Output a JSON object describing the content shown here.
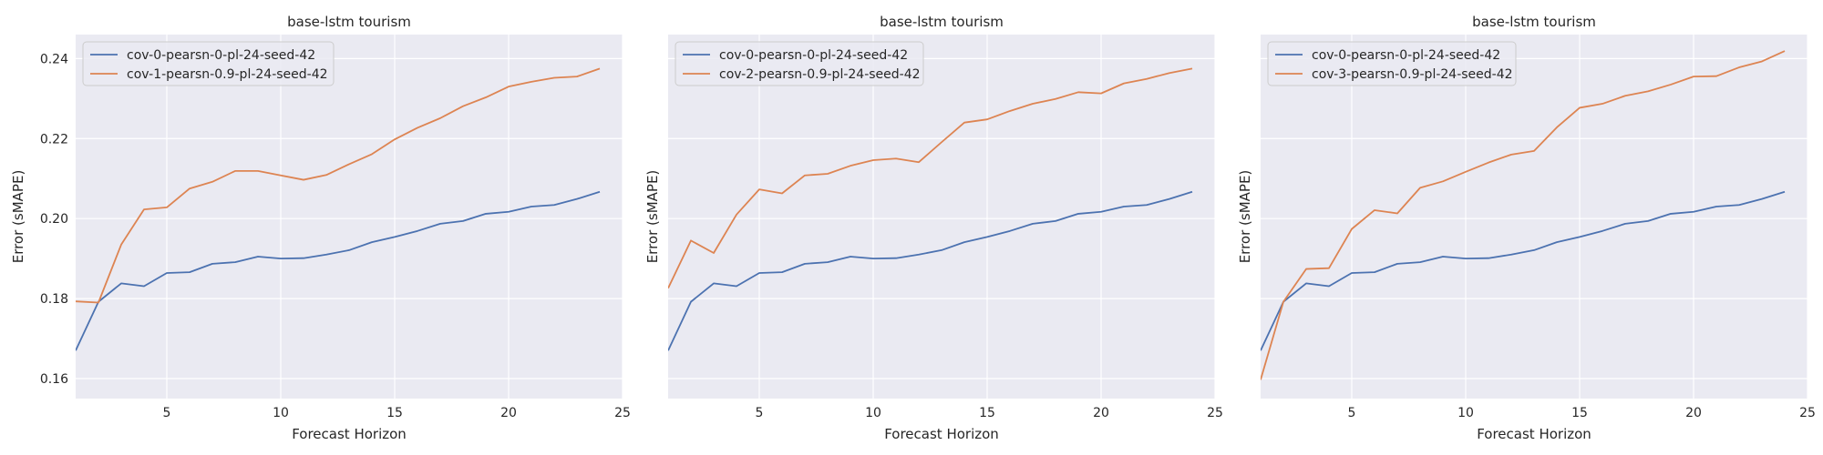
{
  "chart_data": [
    {
      "type": "line",
      "title": "base-lstm tourism",
      "xlabel": "Forecast Horizon",
      "ylabel": "Error (sMAPE)",
      "xlim": [
        1,
        25
      ],
      "ylim": [
        0.155,
        0.246
      ],
      "xticks": [
        5,
        10,
        15,
        20,
        25
      ],
      "yticks": [
        0.16,
        0.18,
        0.2,
        0.22,
        0.24
      ],
      "ytick_labels": [
        "0.16",
        "0.18",
        "0.20",
        "0.22",
        "0.24"
      ],
      "show_ytick_labels": true,
      "grid": true,
      "legend_position": "top-left",
      "x": [
        1,
        2,
        3,
        4,
        5,
        6,
        7,
        8,
        9,
        10,
        11,
        12,
        13,
        14,
        15,
        16,
        17,
        18,
        19,
        20,
        21,
        22,
        23,
        24
      ],
      "series": [
        {
          "name": "cov-0-pearsn-0-pl-24-seed-42",
          "color": "#4c72b0",
          "values": [
            0.167,
            0.1792,
            0.1838,
            0.1831,
            0.1864,
            0.1866,
            0.1887,
            0.1891,
            0.1905,
            0.19,
            0.1901,
            0.191,
            0.1921,
            0.1941,
            0.1954,
            0.1969,
            0.1987,
            0.1994,
            0.2012,
            0.2017,
            0.203,
            0.2034,
            0.2049,
            0.2067
          ]
        },
        {
          "name": "cov-1-pearsn-0.9-pl-24-seed-42",
          "color": "#dd8452",
          "values": [
            0.1793,
            0.179,
            0.1935,
            0.2023,
            0.2028,
            0.2075,
            0.2092,
            0.2119,
            0.2119,
            0.2108,
            0.2097,
            0.2109,
            0.2136,
            0.2161,
            0.2198,
            0.2227,
            0.2251,
            0.2281,
            0.2303,
            0.233,
            0.2342,
            0.2352,
            0.2355,
            0.2375
          ]
        }
      ]
    },
    {
      "type": "line",
      "title": "base-lstm tourism",
      "xlabel": "Forecast Horizon",
      "ylabel": "Error (sMAPE)",
      "xlim": [
        1,
        25
      ],
      "ylim": [
        0.155,
        0.246
      ],
      "xticks": [
        5,
        10,
        15,
        20,
        25
      ],
      "yticks": [
        0.16,
        0.18,
        0.2,
        0.22,
        0.24
      ],
      "ytick_labels": [
        "0.16",
        "0.18",
        "0.20",
        "0.22",
        "0.24"
      ],
      "show_ytick_labels": false,
      "grid": true,
      "legend_position": "top-left",
      "x": [
        1,
        2,
        3,
        4,
        5,
        6,
        7,
        8,
        9,
        10,
        11,
        12,
        13,
        14,
        15,
        16,
        17,
        18,
        19,
        20,
        21,
        22,
        23,
        24
      ],
      "series": [
        {
          "name": "cov-0-pearsn-0-pl-24-seed-42",
          "color": "#4c72b0",
          "values": [
            0.167,
            0.1792,
            0.1838,
            0.1831,
            0.1864,
            0.1866,
            0.1887,
            0.1891,
            0.1905,
            0.19,
            0.1901,
            0.191,
            0.1921,
            0.1941,
            0.1954,
            0.1969,
            0.1987,
            0.1994,
            0.2012,
            0.2017,
            0.203,
            0.2034,
            0.2049,
            0.2067
          ]
        },
        {
          "name": "cov-2-pearsn-0.9-pl-24-seed-42",
          "color": "#dd8452",
          "values": [
            0.1826,
            0.1945,
            0.1914,
            0.201,
            0.2073,
            0.2063,
            0.2108,
            0.2112,
            0.2132,
            0.2146,
            0.215,
            0.2141,
            0.2191,
            0.224,
            0.2248,
            0.2269,
            0.2287,
            0.2299,
            0.2316,
            0.2313,
            0.2338,
            0.2349,
            0.2364,
            0.2375
          ]
        }
      ]
    },
    {
      "type": "line",
      "title": "base-lstm tourism",
      "xlabel": "Forecast Horizon",
      "ylabel": "Error (sMAPE)",
      "xlim": [
        1,
        25
      ],
      "ylim": [
        0.155,
        0.246
      ],
      "xticks": [
        5,
        10,
        15,
        20,
        25
      ],
      "yticks": [
        0.16,
        0.18,
        0.2,
        0.22,
        0.24
      ],
      "ytick_labels": [
        "0.16",
        "0.18",
        "0.20",
        "0.22",
        "0.24"
      ],
      "show_ytick_labels": false,
      "grid": true,
      "legend_position": "top-left",
      "x": [
        1,
        2,
        3,
        4,
        5,
        6,
        7,
        8,
        9,
        10,
        11,
        12,
        13,
        14,
        15,
        16,
        17,
        18,
        19,
        20,
        21,
        22,
        23,
        24
      ],
      "series": [
        {
          "name": "cov-0-pearsn-0-pl-24-seed-42",
          "color": "#4c72b0",
          "values": [
            0.167,
            0.1792,
            0.1838,
            0.1831,
            0.1864,
            0.1866,
            0.1887,
            0.1891,
            0.1905,
            0.19,
            0.1901,
            0.191,
            0.1921,
            0.1941,
            0.1954,
            0.1969,
            0.1987,
            0.1994,
            0.2012,
            0.2017,
            0.203,
            0.2034,
            0.2049,
            0.2067
          ]
        },
        {
          "name": "cov-3-pearsn-0.9-pl-24-seed-42",
          "color": "#dd8452",
          "values": [
            0.1597,
            0.1792,
            0.1874,
            0.1876,
            0.1974,
            0.2021,
            0.2013,
            0.2077,
            0.2093,
            0.2117,
            0.214,
            0.216,
            0.2169,
            0.2228,
            0.2277,
            0.2287,
            0.2307,
            0.2318,
            0.2335,
            0.2355,
            0.2356,
            0.2378,
            0.2393,
            0.2419
          ]
        }
      ]
    }
  ]
}
